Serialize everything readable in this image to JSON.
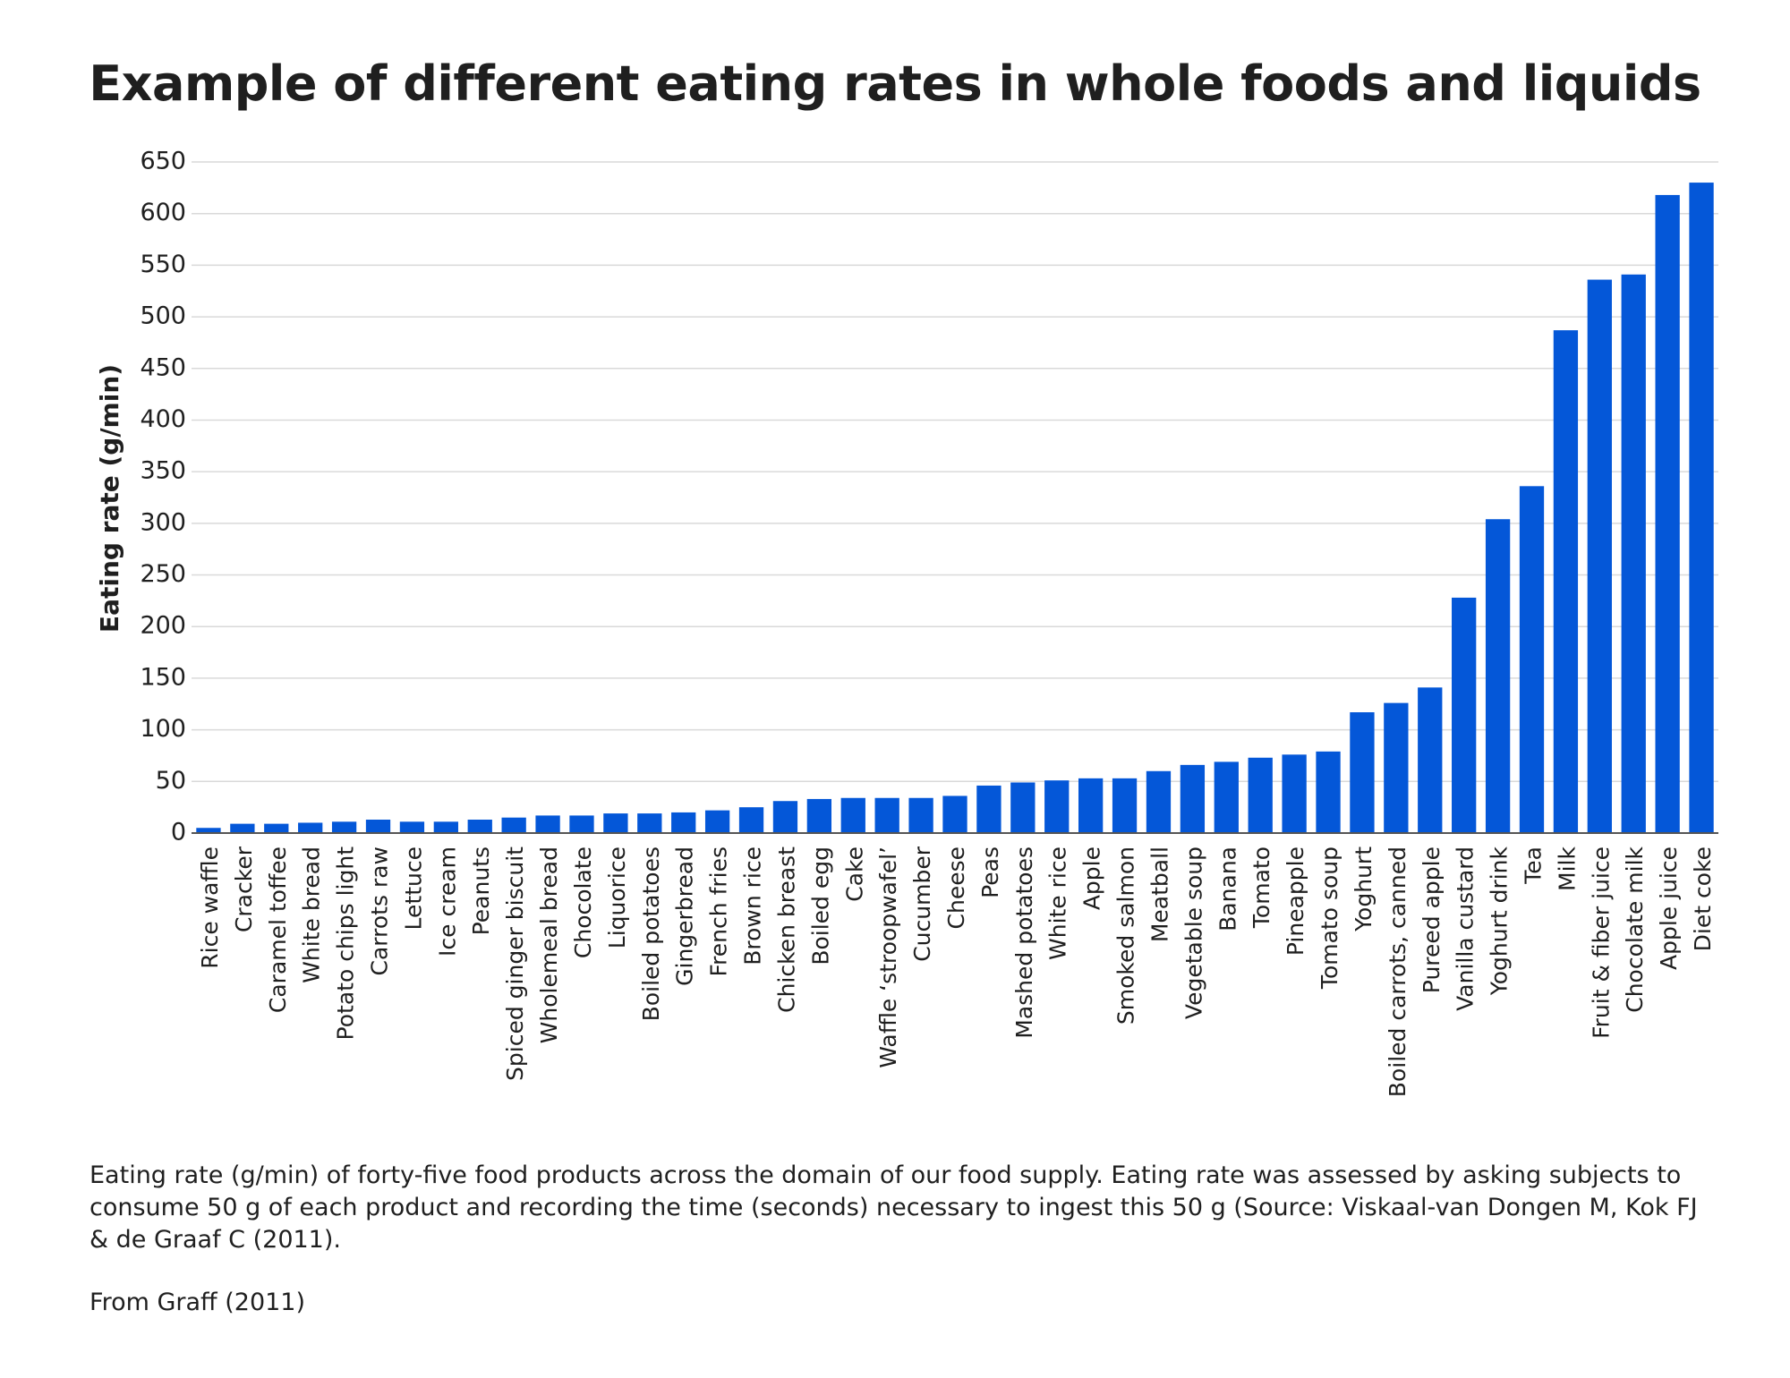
{
  "chart_data": {
    "type": "bar",
    "title": "Example of different eating rates in whole foods and liquids",
    "xlabel": "",
    "ylabel": "Eating rate (g/min)",
    "ylim": [
      0,
      650
    ],
    "yticks": [
      0,
      50,
      100,
      150,
      200,
      250,
      300,
      350,
      400,
      450,
      500,
      550,
      600,
      650
    ],
    "grid": true,
    "bar_color": "#0457d8",
    "categories": [
      "Rice waffle",
      "Cracker",
      "Caramel toffee",
      "White bread",
      "Potato chips light",
      "Carrots raw",
      "Lettuce",
      "Ice cream",
      "Peanuts",
      "Spiced ginger biscuit",
      "Wholemeal bread",
      "Chocolate",
      "Liquorice",
      "Boiled potatoes",
      "Gingerbread",
      "French fries",
      "Brown rice",
      "Chicken breast",
      "Boiled egg",
      "Cake",
      "Waffle ‘stroopwafel’",
      "Cucumber",
      "Cheese",
      "Peas",
      "Mashed potatoes",
      "White  rice",
      "Apple",
      "Smoked salmon",
      "Meatball",
      "Vegetable soup",
      "Banana",
      "Tomato",
      "Pineapple",
      "Tomato soup",
      "Yoghurt",
      "Boiled carrots, canned",
      "Pureed apple",
      "Vanilla custard",
      "Yoghurt drink",
      "Tea",
      "Milk",
      "Fruit & fiber juice",
      "Chocolate milk",
      "Apple juice",
      "Diet coke"
    ],
    "values": [
      5,
      9,
      9,
      10,
      11,
      13,
      11,
      11,
      13,
      15,
      17,
      17,
      19,
      19,
      20,
      22,
      25,
      31,
      33,
      34,
      34,
      34,
      36,
      46,
      49,
      51,
      53,
      53,
      60,
      66,
      69,
      73,
      76,
      79,
      117,
      126,
      141,
      228,
      304,
      336,
      487,
      536,
      541,
      618,
      630
    ]
  },
  "caption": "Eating rate (g/min) of forty-five food products across the domain of our food supply. Eating rate was assessed by asking subjects to consume 50 g of each product and recording the time (seconds) necessary to ingest this 50 g (Source: Viskaal-van Dongen M, Kok FJ & de Graaf C (2011).",
  "source": "From Graff (2011)"
}
